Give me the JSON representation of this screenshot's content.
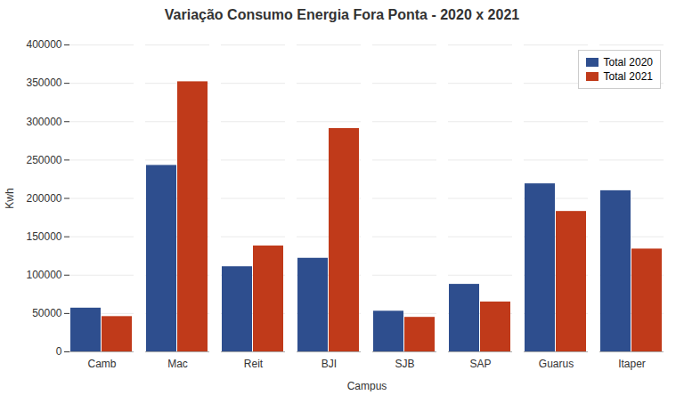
{
  "chart_data": {
    "type": "bar",
    "title": "Variação Consumo Energia Fora Ponta - 2020 x 2021",
    "categories": [
      "Camb",
      "Mac",
      "Reit",
      "BJI",
      "SJB",
      "SAP",
      "Guarus",
      "Itaper"
    ],
    "series": [
      {
        "name": "Total 2020",
        "color": "#2e4e8e",
        "values": [
          57000,
          243000,
          111000,
          122000,
          53000,
          88000,
          219000,
          210000
        ]
      },
      {
        "name": "Total 2021",
        "color": "#c03a1a",
        "values": [
          46000,
          352000,
          138000,
          291000,
          45000,
          65000,
          183000,
          134000
        ]
      }
    ],
    "xlabel": "Campus",
    "ylabel": "Kwh",
    "ylim": [
      0,
      400000
    ],
    "yticks": [
      0,
      50000,
      100000,
      150000,
      200000,
      250000,
      300000,
      350000,
      400000
    ],
    "grid": true,
    "legend": "upper right"
  }
}
